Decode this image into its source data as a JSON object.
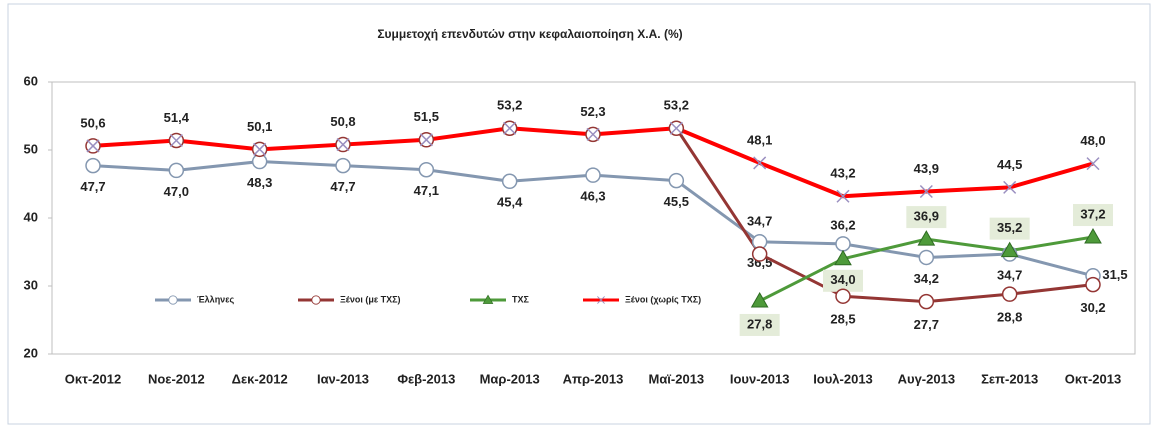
{
  "chart_data": {
    "type": "line",
    "title": "Συμμετοχή επενδυτών στην κεφαλαιοποίηση Χ.Α. (%)",
    "categories": [
      "Οκτ-2012",
      "Νοε-2012",
      "Δεκ-2012",
      "Ιαν-2013",
      "Φεβ-2013",
      "Μαρ-2013",
      "Απρ-2013",
      "Μαϊ-2013",
      "Ιουν-2013",
      "Ιουλ-2013",
      "Αυγ-2013",
      "Σεπ-2013",
      "Οκτ-2013"
    ],
    "ylim": [
      20,
      60
    ],
    "yticks": [
      20,
      30,
      40,
      50,
      60
    ],
    "grid": false,
    "legend": "inside-left",
    "series": [
      {
        "name": "Έλληνες",
        "color": "#8497b0",
        "marker": "circle",
        "values": [
          47.7,
          47.0,
          48.3,
          47.7,
          47.1,
          45.4,
          46.3,
          45.5,
          36.5,
          36.2,
          34.2,
          34.7,
          31.5
        ],
        "value_labels": [
          "47,7",
          "47,0",
          "48,3",
          "47,7",
          "47,1",
          "45,4",
          "46,3",
          "45,5",
          "36,5",
          "36,2",
          "34,2",
          "34,7",
          "31,5"
        ]
      },
      {
        "name": "Ξένοι (με ΤΧΣ)",
        "color": "#943634",
        "marker": "circle",
        "values": [
          50.6,
          51.4,
          50.1,
          50.8,
          51.5,
          53.2,
          52.3,
          53.2,
          34.7,
          28.5,
          27.7,
          28.8,
          30.2
        ],
        "value_labels": [
          null,
          null,
          null,
          null,
          null,
          null,
          null,
          null,
          "34,7",
          "28,5",
          "27,7",
          "28,8",
          "30,2"
        ]
      },
      {
        "name": "ΤΧΣ",
        "color": "#4e9a3a",
        "marker": "triangle",
        "values": [
          null,
          null,
          null,
          null,
          null,
          null,
          null,
          null,
          27.8,
          34.0,
          36.9,
          35.2,
          37.2
        ],
        "value_labels": [
          null,
          null,
          null,
          null,
          null,
          null,
          null,
          null,
          "27,8",
          "34,0",
          "36,9",
          "35,2",
          "37,2"
        ]
      },
      {
        "name": "Ξένοι (χωρίς ΤΧΣ)",
        "color": "#ff0000",
        "marker": "x",
        "values": [
          50.6,
          51.4,
          50.1,
          50.8,
          51.5,
          53.2,
          52.3,
          53.2,
          48.1,
          43.2,
          43.9,
          44.5,
          48.0
        ],
        "value_labels": [
          "50,6",
          "51,4",
          "50,1",
          "50,8",
          "51,5",
          "53,2",
          "52,3",
          "53,2",
          "48,1",
          "43,2",
          "43,9",
          "44,5",
          "48,0"
        ]
      }
    ]
  }
}
